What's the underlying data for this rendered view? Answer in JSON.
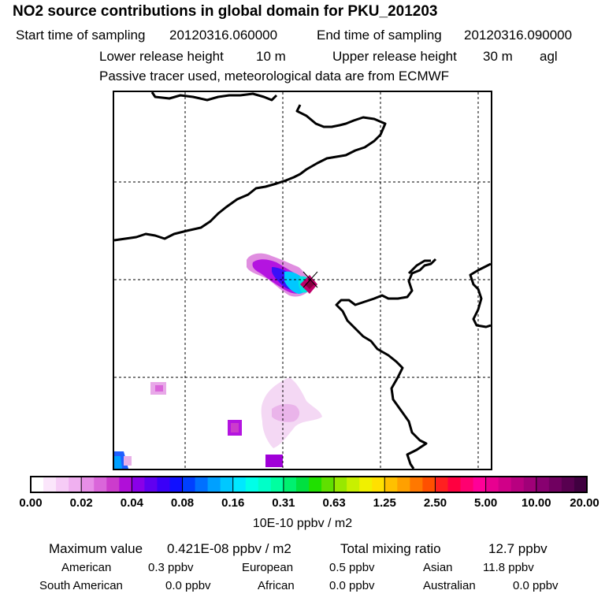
{
  "header": {
    "title": "NO2 source contributions in global domain for PKU_201203",
    "start_label": "Start time of sampling",
    "start_value": "20120316.060000",
    "end_label": "End time of sampling",
    "end_value": "20120316.090000",
    "lower_label": "Lower release height",
    "lower_value": "10 m",
    "upper_label": "Upper release height",
    "upper_value": "30 m",
    "upper_suffix": "agl",
    "tracer_note": "Passive tracer used, meteorological data are from ECMWF"
  },
  "colorbar": {
    "tick_labels": [
      "0.00",
      "0.02",
      "0.04",
      "0.08",
      "0.16",
      "0.31",
      "0.63",
      "1.25",
      "2.50",
      "5.00",
      "10.00",
      "20.00"
    ],
    "colors": [
      "#ffffff",
      "#fbe6fb",
      "#f6ccf6",
      "#f0b0f0",
      "#e78ee7",
      "#da66da",
      "#cc3ccc",
      "#b00fd8",
      "#8a00e8",
      "#6000f0",
      "#3a00f8",
      "#1010ff",
      "#0040ff",
      "#0070ff",
      "#00a0ff",
      "#00c8ff",
      "#00e8ff",
      "#00ffe8",
      "#00ffc8",
      "#00ffa0",
      "#00f070",
      "#00e040",
      "#20e000",
      "#60e000",
      "#98e800",
      "#c8f000",
      "#f0f000",
      "#ffe000",
      "#ffc000",
      "#ffa000",
      "#ff7800",
      "#ff5000",
      "#ff2020",
      "#ff0040",
      "#ff0070",
      "#ff0098",
      "#e80090",
      "#d00088",
      "#b80080",
      "#a00078",
      "#880070",
      "#700060",
      "#580050",
      "#400040"
    ],
    "unit_label": "10E-10 ppbv / m2"
  },
  "summary": {
    "max_label": "Maximum value",
    "max_value": "0.421E-08 ppbv / m2",
    "total_label": "Total mixing ratio",
    "total_value": "12.7 ppbv",
    "american_label": "American",
    "american_value": "0.3 ppbv",
    "european_label": "European",
    "european_value": "0.5 ppbv",
    "asian_label": "Asian",
    "asian_value": "11.8 ppbv",
    "south_american_label": "South American",
    "south_american_value": "0.0 ppbv",
    "african_label": "African",
    "african_value": "0.0 ppbv",
    "australian_label": "Australian",
    "australian_value": "0.0 ppbv"
  }
}
